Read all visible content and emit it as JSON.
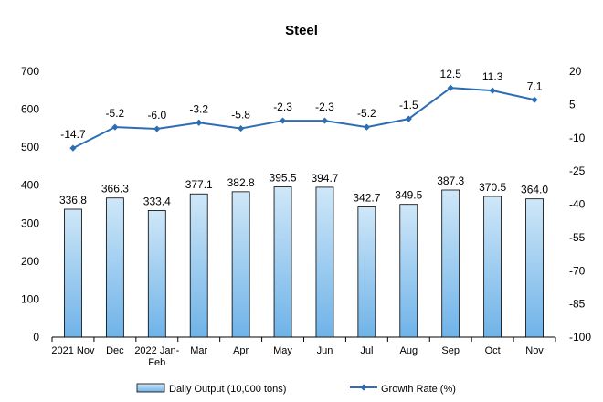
{
  "chart_data": {
    "type": "bar+line",
    "title": "Steel",
    "categories": [
      "2021 Nov",
      "Dec",
      "2022 Jan-Feb",
      "Mar",
      "Apr",
      "May",
      "Jun",
      "Jul",
      "Aug",
      "Sep",
      "Oct",
      "Nov"
    ],
    "category_lines": [
      [
        "2021 Nov"
      ],
      [
        "Dec"
      ],
      [
        "2022 Jan-",
        "Feb"
      ],
      [
        "Mar"
      ],
      [
        "Apr"
      ],
      [
        "May"
      ],
      [
        "Jun"
      ],
      [
        "Jul"
      ],
      [
        "Aug"
      ],
      [
        "Sep"
      ],
      [
        "Oct"
      ],
      [
        "Nov"
      ]
    ],
    "series": [
      {
        "name": "Daily Output (10,000 tons)",
        "type": "bar",
        "axis": "left",
        "values": [
          336.8,
          366.3,
          333.4,
          377.1,
          382.8,
          395.5,
          394.7,
          342.7,
          349.5,
          387.3,
          370.5,
          364.0
        ],
        "labels": [
          "336.8",
          "366.3",
          "333.4",
          "377.1",
          "382.8",
          "395.5",
          "394.7",
          "342.7",
          "349.5",
          "387.3",
          "370.5",
          "364.0"
        ]
      },
      {
        "name": "Growth Rate (%)",
        "type": "line",
        "axis": "right",
        "values": [
          -14.7,
          -5.2,
          -6.0,
          -3.2,
          -5.8,
          -2.3,
          -2.3,
          -5.2,
          -1.5,
          12.5,
          11.3,
          7.1
        ],
        "labels": [
          "-14.7",
          "-5.2",
          "-6.0",
          "-3.2",
          "-5.8",
          "-2.3",
          "-2.3",
          "-5.2",
          "-1.5",
          "12.5",
          "11.3",
          "7.1"
        ]
      }
    ],
    "y_left": {
      "min": 0,
      "max": 700,
      "ticks": [
        0,
        100,
        200,
        300,
        400,
        500,
        600,
        700
      ]
    },
    "y_right": {
      "min": -100,
      "max": 20,
      "ticks": [
        20,
        5,
        -10,
        -25,
        -40,
        -55,
        -70,
        -85,
        -100
      ]
    },
    "grid": false,
    "legend_position": "bottom",
    "colors": {
      "bar_fill_top": "#c7e3f7",
      "bar_fill_bottom": "#6fb3e8",
      "bar_stroke": "#000000",
      "line": "#2e6db4"
    }
  }
}
